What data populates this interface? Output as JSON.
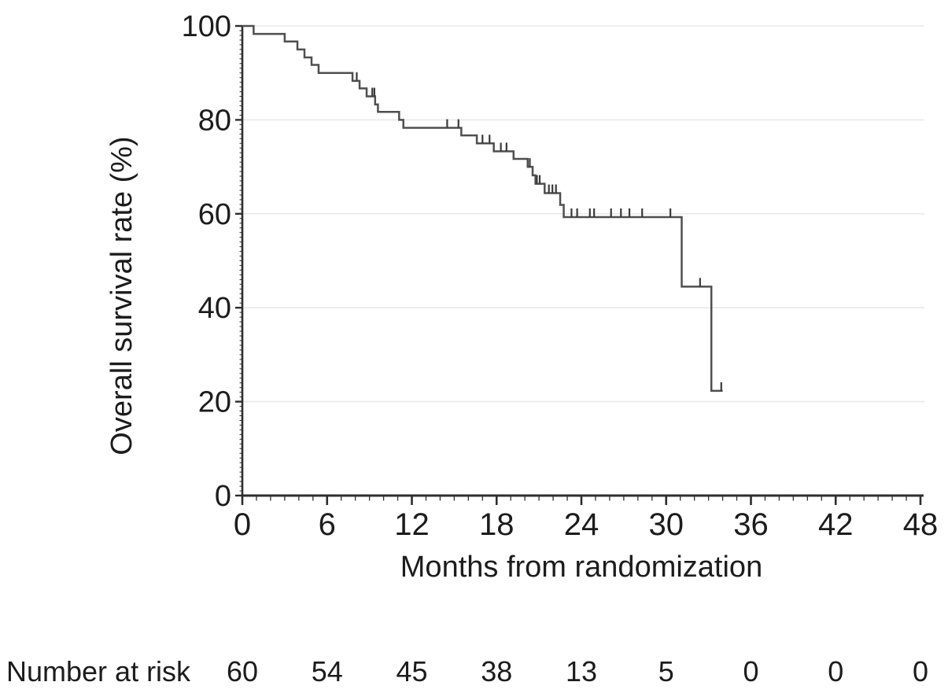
{
  "figure": {
    "background": "#ffffff"
  },
  "colors": {
    "curve": "#4f4f4f",
    "axis": "#2e2e2e",
    "tick": "#2e2e2e",
    "grid": "#e9e9e9",
    "text": "#1c1c1c",
    "censor": "#3a3a3a"
  },
  "chart_data": {
    "type": "line",
    "subtype": "kaplan-meier-step-function",
    "title": "",
    "xlabel": "Months from randomization",
    "ylabel": "Overall survival rate (%)",
    "xlim": [
      0,
      48
    ],
    "ylim": [
      0,
      100
    ],
    "x_ticks_major": [
      0,
      6,
      12,
      18,
      24,
      30,
      36,
      42,
      48
    ],
    "x_minor_tick_interval": 1,
    "y_ticks": [
      0,
      20,
      40,
      60,
      80,
      100
    ],
    "y_minor_tick_interval": 1,
    "grid": "horizontal-light",
    "legend": "none",
    "series": [
      {
        "name": "Overall survival",
        "start": [
          0,
          100
        ],
        "steps": [
          [
            0.8,
            98.3
          ],
          [
            3.0,
            96.7
          ],
          [
            3.9,
            95.0
          ],
          [
            4.4,
            93.3
          ],
          [
            4.9,
            91.7
          ],
          [
            5.4,
            90.0
          ],
          [
            7.8,
            88.3
          ],
          [
            8.3,
            86.7
          ],
          [
            8.8,
            85.0
          ],
          [
            9.4,
            83.3
          ],
          [
            9.6,
            81.7
          ],
          [
            11.1,
            80.0
          ],
          [
            11.4,
            78.3
          ],
          [
            15.5,
            76.7
          ],
          [
            16.6,
            75.0
          ],
          [
            17.8,
            73.3
          ],
          [
            19.2,
            71.7
          ],
          [
            20.2,
            70.0
          ],
          [
            20.55,
            68.2
          ],
          [
            20.75,
            66.4
          ],
          [
            21.4,
            64.4
          ],
          [
            22.5,
            61.9
          ],
          [
            22.75,
            59.3
          ],
          [
            31.1,
            44.5
          ],
          [
            33.2,
            22.3
          ]
        ],
        "end_month": 34.0,
        "censor_marks": [
          [
            8.1,
            88.3
          ],
          [
            9.2,
            85.0
          ],
          [
            9.35,
            85.0
          ],
          [
            14.5,
            78.3
          ],
          [
            15.3,
            78.3
          ],
          [
            17.0,
            75.0
          ],
          [
            17.5,
            75.0
          ],
          [
            18.3,
            73.3
          ],
          [
            18.7,
            73.3
          ],
          [
            20.35,
            70.0
          ],
          [
            20.85,
            66.4
          ],
          [
            21.05,
            66.4
          ],
          [
            21.7,
            64.4
          ],
          [
            21.95,
            64.4
          ],
          [
            22.2,
            64.4
          ],
          [
            23.3,
            59.3
          ],
          [
            23.7,
            59.3
          ],
          [
            24.6,
            59.3
          ],
          [
            24.9,
            59.3
          ],
          [
            26.1,
            59.3
          ],
          [
            26.8,
            59.3
          ],
          [
            27.4,
            59.3
          ],
          [
            28.3,
            59.3
          ],
          [
            30.3,
            59.3
          ],
          [
            32.4,
            44.5
          ],
          [
            33.9,
            22.3
          ]
        ]
      }
    ],
    "at_risk": {
      "label": "Number at risk",
      "time_points": [
        0,
        6,
        12,
        18,
        24,
        30,
        36,
        42,
        48
      ],
      "values": [
        60,
        54,
        45,
        38,
        13,
        5,
        0,
        0,
        0
      ]
    }
  }
}
